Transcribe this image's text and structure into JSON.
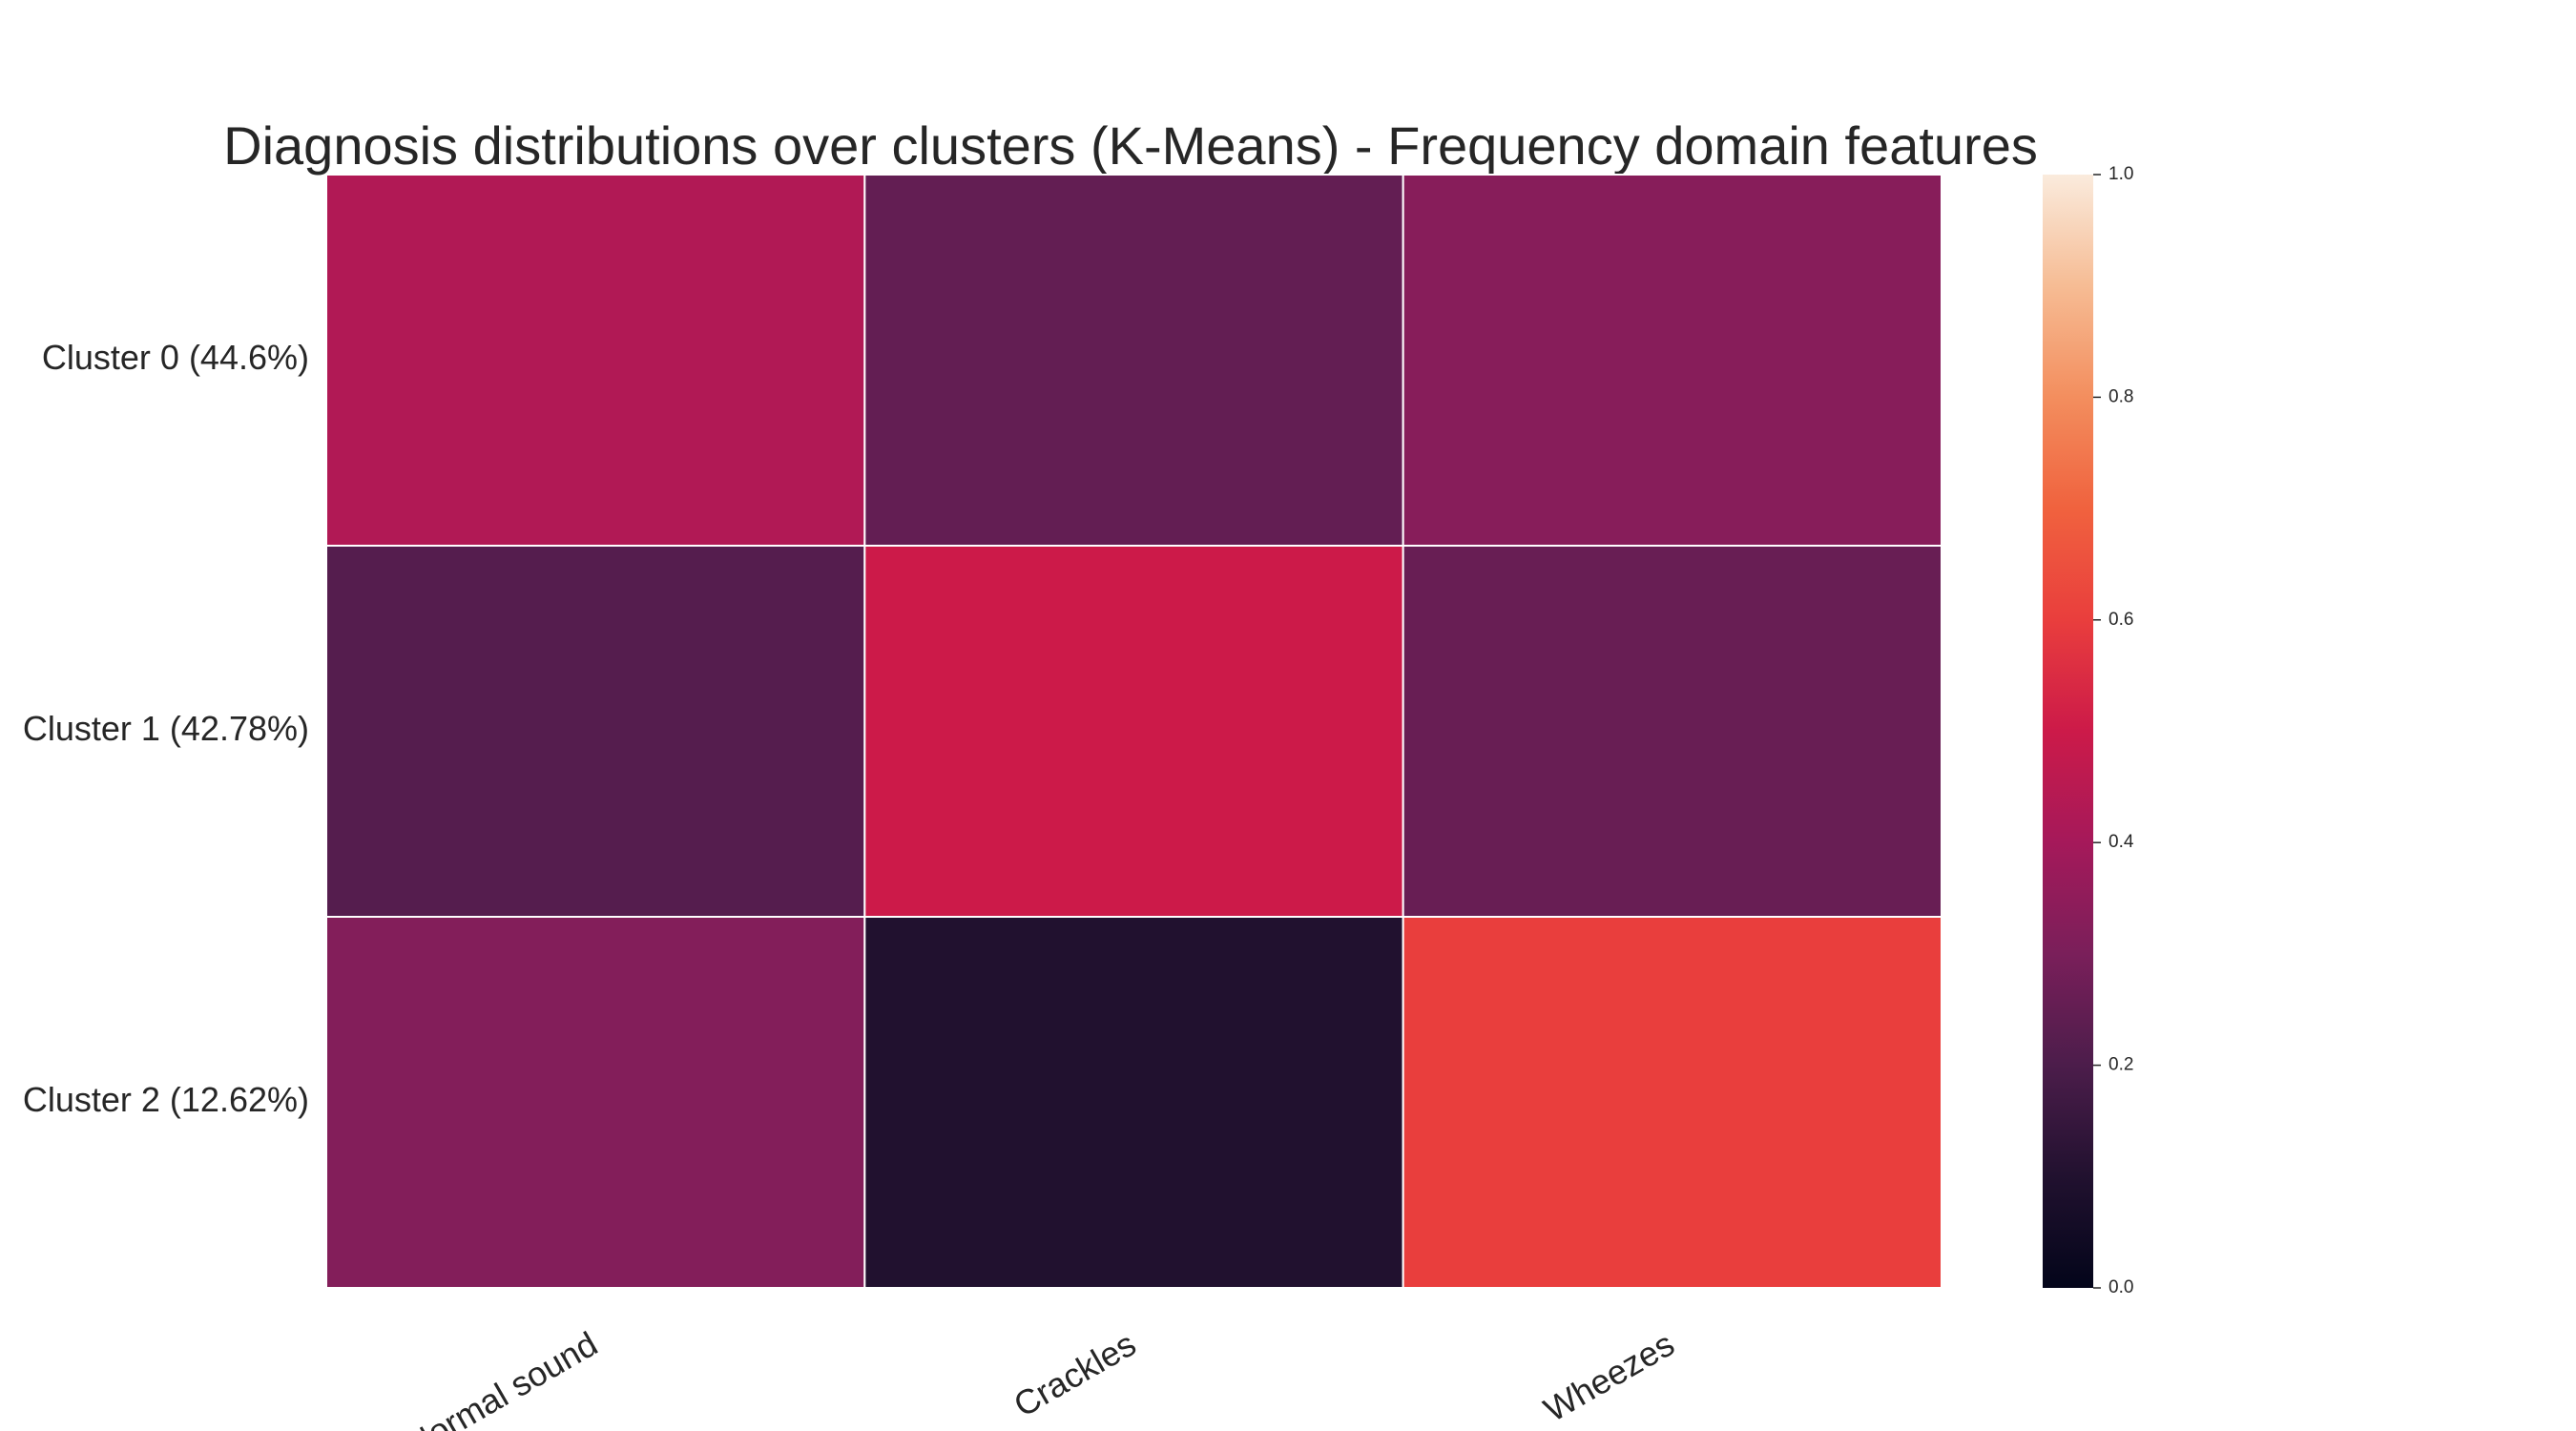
{
  "chart_data": {
    "type": "heatmap",
    "title": "Diagnosis distributions over clusters (K-Means) - Frequency domain features",
    "xlabel": "",
    "ylabel": "",
    "rows": [
      "Cluster 0 (44.6%)",
      "Cluster 1 (42.78%)",
      "Cluster 2 (12.62%)"
    ],
    "columns": [
      "Normal sound",
      "Crackles",
      "Wheezes"
    ],
    "values": [
      [
        0.43,
        0.25,
        0.33
      ],
      [
        0.22,
        0.5,
        0.26
      ],
      [
        0.32,
        0.1,
        0.6
      ]
    ],
    "colorbar": {
      "range": [
        0.0,
        1.0
      ],
      "ticks": [
        "0.0",
        "0.2",
        "0.4",
        "0.6",
        "0.8",
        "1.0"
      ],
      "colormap": "rocket"
    },
    "grid": false,
    "cell_border_color": "#ffffff",
    "legend": "colorbar-right"
  }
}
